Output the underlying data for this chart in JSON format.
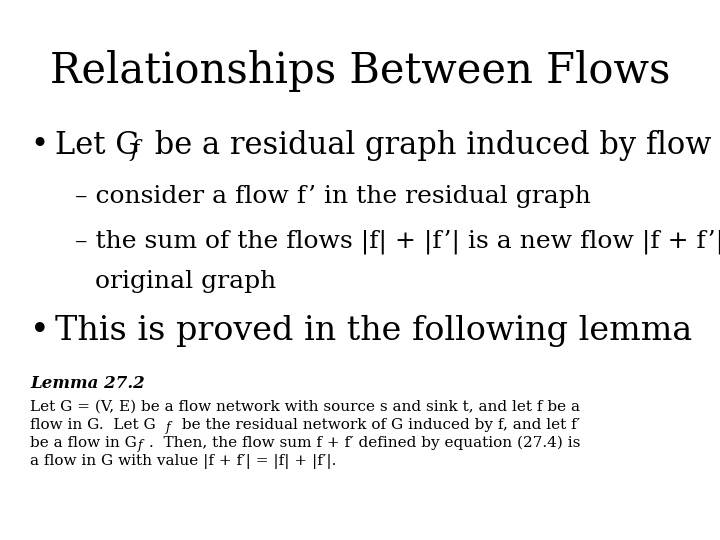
{
  "background_color": "#ffffff",
  "title": "Relationships Between Flows",
  "title_fontsize": 30,
  "title_font": "DejaVu Serif",
  "title_color": "#000000",
  "bullet1_fontsize": 22,
  "sub_fontsize": 18,
  "bullet2_fontsize": 24,
  "lemma_title": "Lemma 27.2",
  "lemma_title_fontsize": 12,
  "lemma_line1": "Let G = (V, E) be a flow network with source s and sink t, and let f be a",
  "lemma_line2a": "flow in G.  Let G",
  "lemma_line2b": "f",
  "lemma_line2c": " be the residual network of G induced by f, and let f′",
  "lemma_line3a": "be a flow in G",
  "lemma_line3b": "f",
  "lemma_line3c": ".  Then, the flow sum f + f′ defined by equation (27.4) is",
  "lemma_line4": "a flow in G with value |f + f′| = |f| + |f′|.",
  "lemma_fontsize": 11,
  "text_color": "#000000"
}
